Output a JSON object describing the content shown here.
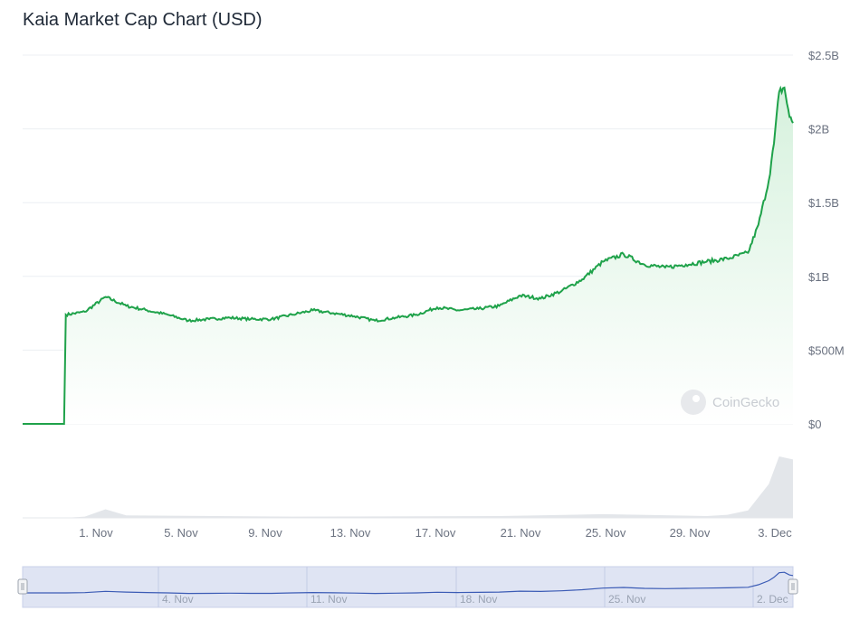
{
  "title": "Kaia Market Cap Chart (USD)",
  "watermark": "CoinGecko",
  "colors": {
    "line": "#1fa24a",
    "area_top": "#d6f1dd",
    "grid": "#eceff3",
    "volume": "#e3e6ea",
    "navigator_fill": "#dfe4f3",
    "navigator_line": "#3b5bb5"
  },
  "chart_data": {
    "type": "area",
    "title": "Kaia Market Cap Chart (USD)",
    "xlabel": "",
    "ylabel": "",
    "y_unit": "USD",
    "ylim": [
      0,
      2500000000
    ],
    "xlim": [
      "2024-10-28T00:00",
      "2024-12-04T04:00"
    ],
    "y_tick_labels": [
      "$0",
      "$500M",
      "$1B",
      "$1.5B",
      "$2B",
      "$2.5B"
    ],
    "y_tick_values": [
      0,
      500000000,
      1000000000,
      1500000000,
      2000000000,
      2500000000
    ],
    "x_tick_labels": [
      "1. Nov",
      "5. Nov",
      "9. Nov",
      "13. Nov",
      "17. Nov",
      "21. Nov",
      "25. Nov",
      "29. Nov",
      "3. Dec"
    ],
    "navigator_tick_labels": [
      "4. Nov",
      "11. Nov",
      "18. Nov",
      "25. Nov",
      "2. Dec"
    ],
    "grid": true,
    "legend": "none",
    "series": [
      {
        "x": [
          "2024-10-28",
          "2024-10-30",
          "2024-10-30T02:00",
          "2024-10-31",
          "2024-11-01",
          "2024-11-02",
          "2024-11-03",
          "2024-11-04",
          "2024-11-05",
          "2024-11-06",
          "2024-11-07",
          "2024-11-08",
          "2024-11-09",
          "2024-11-10",
          "2024-11-11",
          "2024-11-12",
          "2024-11-13",
          "2024-11-14",
          "2024-11-15",
          "2024-11-16",
          "2024-11-17",
          "2024-11-18",
          "2024-11-19",
          "2024-11-20",
          "2024-11-21",
          "2024-11-22",
          "2024-11-23",
          "2024-11-24",
          "2024-11-25",
          "2024-11-26",
          "2024-11-27",
          "2024-11-28",
          "2024-11-29",
          "2024-11-30",
          "2024-12-01",
          "2024-12-02",
          "2024-12-02T12:00",
          "2024-12-03",
          "2024-12-03T06:00",
          "2024-12-03T12:00",
          "2024-12-03T18:00",
          "2024-12-04",
          "2024-12-04T04:00"
        ],
        "values": [
          0,
          0,
          740000000,
          760000000,
          860000000,
          800000000,
          770000000,
          740000000,
          700000000,
          710000000,
          720000000,
          710000000,
          710000000,
          740000000,
          770000000,
          750000000,
          730000000,
          700000000,
          720000000,
          740000000,
          790000000,
          770000000,
          780000000,
          800000000,
          870000000,
          850000000,
          900000000,
          980000000,
          1100000000,
          1150000000,
          1080000000,
          1060000000,
          1080000000,
          1100000000,
          1120000000,
          1160000000,
          1350000000,
          1650000000,
          1900000000,
          2250000000,
          2280000000,
          2080000000,
          2040000000
        ]
      }
    ],
    "volume_series": {
      "x": [
        "2024-10-28",
        "2024-10-30",
        "2024-10-31",
        "2024-11-01",
        "2024-11-02",
        "2024-11-10",
        "2024-11-20",
        "2024-11-25",
        "2024-11-30",
        "2024-12-01",
        "2024-12-02",
        "2024-12-03",
        "2024-12-03T12:00",
        "2024-12-04T04:00"
      ],
      "values": [
        0,
        0,
        2,
        14,
        4,
        2,
        3,
        6,
        3,
        5,
        12,
        55,
        100,
        95
      ]
    }
  }
}
